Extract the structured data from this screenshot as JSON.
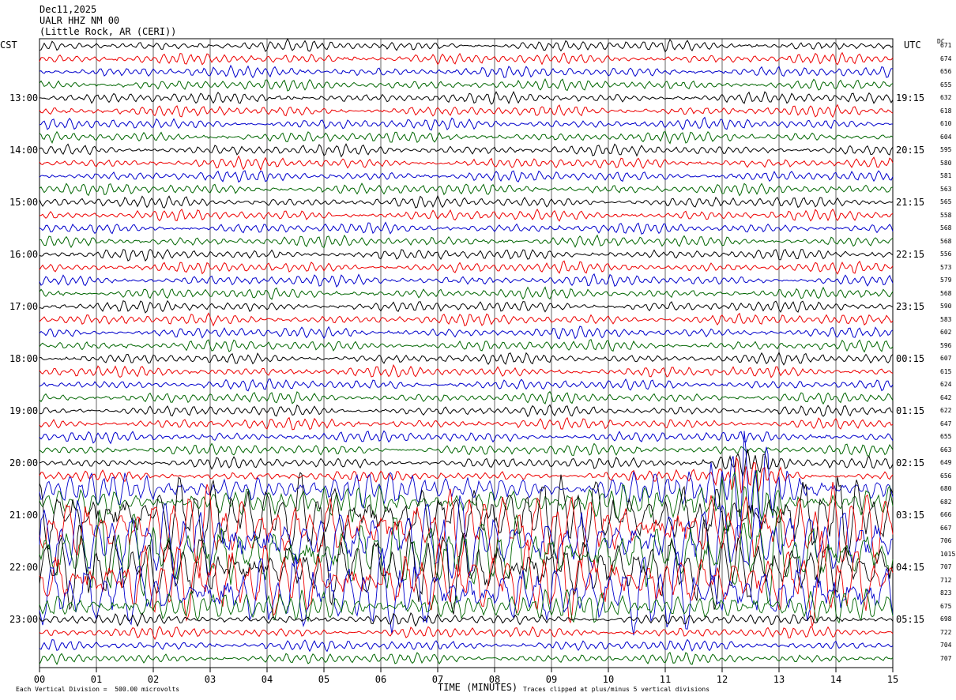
{
  "header": {
    "date": "Dec11,2025",
    "station": "UALR HHZ NM 00",
    "location": "(Little Rock, AR (CERI))"
  },
  "chart_data": {
    "type": "line",
    "title": "Dec11,2025",
    "left_axis_label": "CST",
    "right_axis_label": "UTC",
    "dc_label": "DC",
    "xlabel": "TIME (MINUTES)",
    "x_ticks": [
      "00",
      "01",
      "02",
      "03",
      "04",
      "05",
      "06",
      "07",
      "08",
      "09",
      "10",
      "11",
      "12",
      "13",
      "14",
      "15"
    ],
    "xlim": [
      0,
      15
    ],
    "left_time_labels": [
      "13:00",
      "14:00",
      "15:00",
      "16:00",
      "17:00",
      "18:00",
      "19:00",
      "20:00",
      "21:00",
      "22:00",
      "23:00"
    ],
    "right_time_labels": [
      "19:15",
      "20:15",
      "21:15",
      "22:15",
      "23:15",
      "00:15",
      "01:15",
      "02:15",
      "03:15",
      "04:15",
      "05:15"
    ],
    "trace_colors": [
      "#000000",
      "#ee0000",
      "#0000cc",
      "#006600"
    ],
    "dc_offsets": [
      "671",
      "674",
      "656",
      "655",
      "632",
      "618",
      "610",
      "604",
      "595",
      "580",
      "581",
      "563",
      "565",
      "558",
      "568",
      "568",
      "556",
      "573",
      "579",
      "568",
      "590",
      "583",
      "602",
      "596",
      "607",
      "615",
      "624",
      "642",
      "622",
      "647",
      "655",
      "663",
      "649",
      "656",
      "680",
      "682",
      "666",
      "667",
      "706",
      "1015",
      "707",
      "712",
      "823",
      "675",
      "698",
      "722",
      "704",
      "707"
    ],
    "event": {
      "start_row": 34,
      "end_row": 43,
      "burst_minute": 12.4
    },
    "footer_left": "Each Vertical Division =  500.00 microvolts",
    "footer_right": "Traces clipped at plus/minus 5 vertical divisions"
  }
}
